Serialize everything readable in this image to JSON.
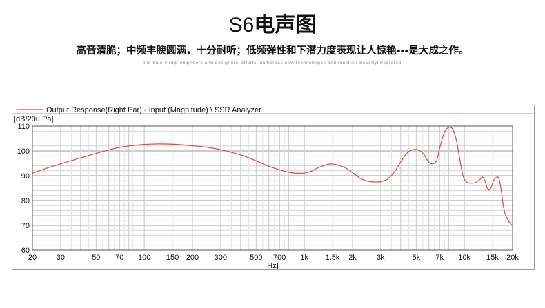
{
  "header": {
    "model": "S6",
    "title_cn": "电声图",
    "subtitle": "高音清脆；中频丰腴圆满，十分耐听；低频弹性和下潜力度表现让人惊艳---是大成之作。",
    "tagline": "the blue string engineers and designers' efforts, numerous new technologies and function cleverlyintegrated"
  },
  "chart_data": {
    "type": "line",
    "title": "",
    "legend": "Output Response(Right Ear) - Input (Magnitude) \\ SSR Analyzer",
    "legend_position": "top-left",
    "xlabel": "[Hz]",
    "ylabel": "[dB/20u Pa]",
    "x_scale": "log",
    "xlim": [
      20,
      20000
    ],
    "ylim": [
      60,
      110
    ],
    "x_tick_labels": [
      "20",
      "30",
      "50",
      "70",
      "100",
      "150",
      "200",
      "300",
      "500",
      "700",
      "1k",
      "1.5k",
      "2k",
      "3k",
      "5k",
      "7k",
      "10k",
      "15k",
      "20k"
    ],
    "x_tick_values": [
      20,
      30,
      50,
      70,
      100,
      150,
      200,
      300,
      500,
      700,
      1000,
      1500,
      2000,
      3000,
      5000,
      7000,
      10000,
      15000,
      20000
    ],
    "y_tick_values": [
      60,
      70,
      80,
      90,
      100,
      110
    ],
    "grid": true,
    "line_color": "#e0443a",
    "series": [
      {
        "name": "Output Response(Right Ear) - Input (Magnitude) \\ SSR Analyzer",
        "x": [
          20,
          25,
          30,
          40,
          50,
          60,
          70,
          80,
          100,
          120,
          150,
          200,
          250,
          300,
          400,
          500,
          600,
          700,
          800,
          900,
          1000,
          1100,
          1200,
          1400,
          1500,
          1600,
          1800,
          2000,
          2200,
          2400,
          2600,
          2800,
          3000,
          3300,
          3600,
          4000,
          4300,
          4600,
          5000,
          5300,
          5600,
          5800,
          6000,
          6300,
          6700,
          7000,
          7500,
          8000,
          8500,
          9000,
          9400,
          9800,
          10300,
          11000,
          11800,
          12500,
          13000,
          13500,
          14000,
          14600,
          15200,
          16000,
          16500,
          17000,
          17500,
          18000,
          19000,
          20000
        ],
        "y": [
          91,
          93.2,
          94.8,
          97.2,
          99,
          100.4,
          101.4,
          102,
          102.6,
          102.8,
          102.7,
          102.1,
          101.4,
          100.5,
          98.4,
          96,
          93.8,
          92.4,
          91.4,
          91,
          91.1,
          91.8,
          93,
          94.6,
          94.7,
          94.4,
          93.2,
          91.3,
          89.3,
          88.1,
          87.6,
          87.5,
          87.6,
          88.6,
          91,
          95.5,
          98.5,
          100.2,
          100.6,
          100,
          98.5,
          96.8,
          95.5,
          94.8,
          96,
          101,
          107.5,
          109.5,
          108.5,
          103,
          96,
          90,
          87.5,
          87,
          87.3,
          88.5,
          89.5,
          87.5,
          84.5,
          84.8,
          88,
          89.5,
          88.5,
          84,
          78,
          74.5,
          71.5,
          69.8
        ]
      }
    ]
  }
}
